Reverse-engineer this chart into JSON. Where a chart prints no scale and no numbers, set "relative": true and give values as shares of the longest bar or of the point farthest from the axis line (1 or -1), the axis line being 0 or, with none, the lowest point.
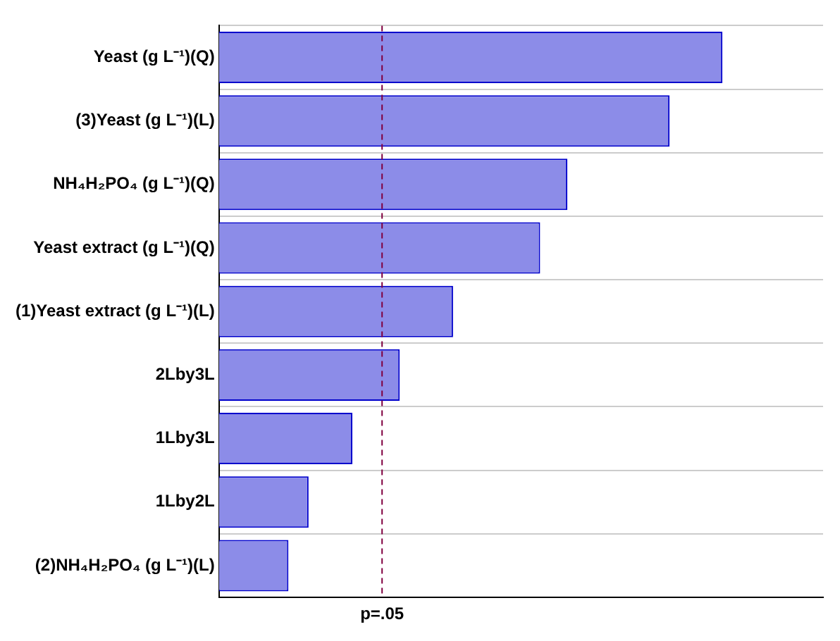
{
  "chart_data": {
    "type": "bar",
    "orientation": "horizontal",
    "relative": true,
    "grid": "y",
    "legend": false,
    "categories": [
      "Yeast (g L⁻¹)(Q)",
      "(3)Yeast (g L⁻¹)(L)",
      "NH₄H₂PO₄ (g L⁻¹)(Q)",
      "Yeast extract (g L⁻¹)(Q)",
      "(1)Yeast extract (g L⁻¹)(L)",
      "2Lby3L",
      "1Lby3L",
      "1Lby2L",
      "(2)NH₄H₂PO₄ (g L⁻¹)(L)"
    ],
    "values": [
      1,
      0.895,
      0.692,
      0.638,
      0.465,
      0.359,
      0.265,
      0.178,
      0.138
    ],
    "color": "#8c8ce8",
    "ref_lines": [
      {
        "axis": "x",
        "value": 0.324,
        "label": "p=.05",
        "color": "#800040",
        "line_style": "dashed"
      }
    ]
  }
}
